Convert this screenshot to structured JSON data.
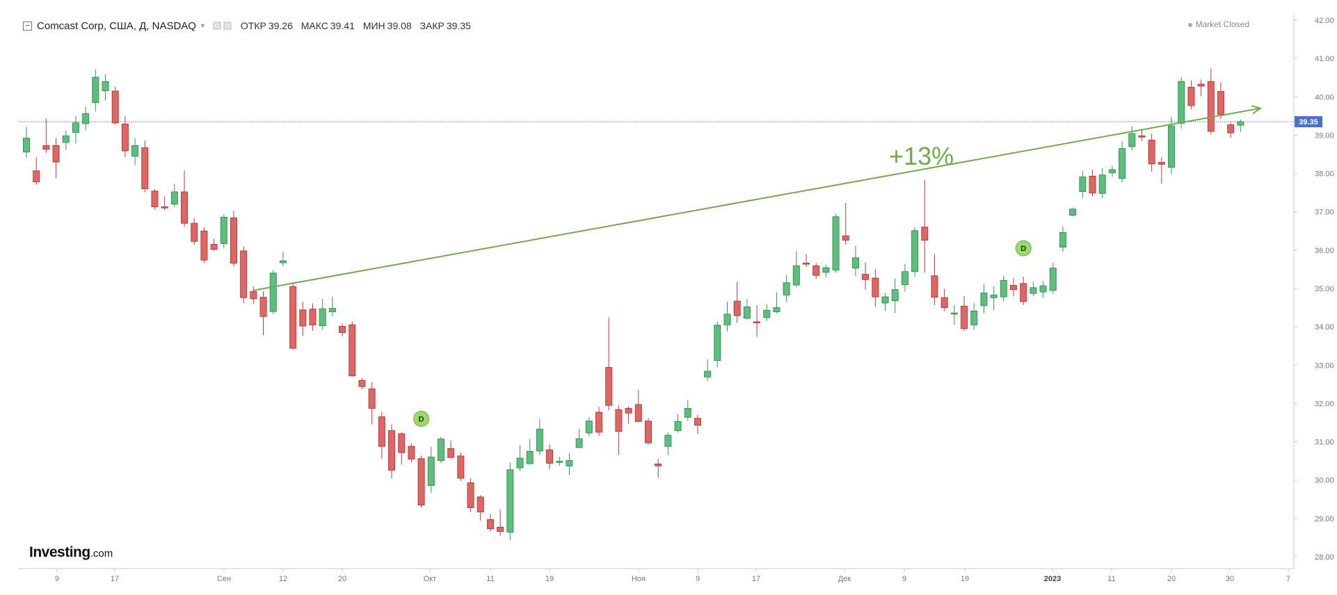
{
  "header": {
    "title": "Comcast Corp, США, Д, NASDAQ",
    "open_label": "ОТКР",
    "open_value": "39.26",
    "high_label": "МАКС",
    "high_value": "39.41",
    "low_label": "МИН",
    "low_value": "39.08",
    "close_label": "ЗАКР",
    "close_value": "39.35",
    "status": "Market Closed"
  },
  "logo": {
    "main": "Investing",
    "suffix": ".com"
  },
  "chart_data": {
    "type": "candlestick",
    "title": "Comcast Corp, США, Д, NASDAQ",
    "ylim": [
      27.8,
      42.2
    ],
    "y_ticks": [
      "28.00",
      "29.00",
      "30.00",
      "31.00",
      "32.00",
      "33.00",
      "34.00",
      "35.00",
      "36.00",
      "37.00",
      "38.00",
      "39.00",
      "40.00",
      "41.00",
      "42.00"
    ],
    "x_ticks": [
      "9",
      "17",
      "Сен",
      "12",
      "20",
      "Окт",
      "11",
      "19",
      "Ноя",
      "9",
      "17",
      "Дек",
      "9",
      "19",
      "2023",
      "11",
      "20",
      "30",
      "7"
    ],
    "grid": false,
    "last_price": "39.35",
    "candles": [
      [
        38.56,
        38.92,
        38.41,
        39.22
      ],
      [
        38.07,
        37.78,
        37.71,
        38.42
      ],
      [
        38.73,
        38.63,
        38.54,
        39.43
      ],
      [
        38.73,
        38.3,
        37.88,
        38.92
      ],
      [
        38.81,
        38.98,
        38.62,
        39.12
      ],
      [
        39.07,
        39.32,
        38.78,
        39.5
      ],
      [
        39.3,
        39.56,
        39.13,
        39.74
      ],
      [
        39.85,
        40.51,
        39.62,
        40.72
      ],
      [
        40.16,
        40.4,
        39.9,
        40.59
      ],
      [
        40.15,
        39.32,
        39.27,
        40.27
      ],
      [
        39.29,
        38.59,
        38.43,
        39.49
      ],
      [
        38.45,
        38.73,
        38.22,
        38.92
      ],
      [
        38.67,
        37.6,
        37.51,
        38.86
      ],
      [
        37.54,
        37.13,
        37.06,
        37.59
      ],
      [
        37.13,
        37.1,
        37.05,
        37.4
      ],
      [
        37.2,
        37.52,
        37.12,
        37.73
      ],
      [
        37.52,
        36.7,
        36.61,
        38.08
      ],
      [
        36.7,
        36.23,
        36.14,
        36.83
      ],
      [
        36.5,
        35.74,
        35.66,
        36.6
      ],
      [
        36.15,
        36.02,
        35.98,
        36.3
      ],
      [
        36.17,
        36.86,
        36.05,
        36.93
      ],
      [
        36.84,
        35.66,
        35.58,
        37.03
      ],
      [
        35.98,
        34.76,
        34.62,
        36.1
      ],
      [
        34.92,
        34.73,
        34.6,
        35.05
      ],
      [
        34.77,
        34.27,
        33.78,
        34.92
      ],
      [
        34.4,
        35.4,
        34.33,
        35.48
      ],
      [
        35.67,
        35.72,
        35.58,
        35.96
      ],
      [
        35.05,
        33.44,
        33.41,
        35.17
      ],
      [
        34.44,
        34.02,
        33.76,
        34.65
      ],
      [
        34.46,
        34.05,
        33.9,
        34.61
      ],
      [
        34.03,
        34.47,
        33.92,
        34.73
      ],
      [
        34.39,
        34.48,
        34.27,
        34.78
      ],
      [
        34.01,
        33.85,
        33.75,
        34.08
      ],
      [
        34.05,
        32.72,
        32.7,
        34.13
      ],
      [
        32.6,
        32.44,
        32.37,
        32.66
      ],
      [
        32.38,
        31.87,
        31.45,
        32.56
      ],
      [
        31.65,
        30.88,
        30.55,
        31.78
      ],
      [
        31.29,
        30.26,
        30.04,
        31.45
      ],
      [
        31.21,
        30.72,
        30.4,
        31.25
      ],
      [
        30.88,
        30.55,
        30.46,
        30.96
      ],
      [
        30.56,
        29.35,
        29.28,
        30.64
      ],
      [
        29.86,
        30.6,
        29.66,
        30.87
      ],
      [
        30.51,
        31.07,
        30.44,
        31.13
      ],
      [
        30.82,
        30.59,
        30.56,
        31.03
      ],
      [
        30.63,
        30.05,
        29.98,
        30.72
      ],
      [
        29.93,
        29.28,
        29.17,
        30.05
      ],
      [
        29.56,
        29.17,
        28.94,
        29.61
      ],
      [
        28.97,
        28.73,
        28.66,
        29.12
      ],
      [
        28.77,
        28.66,
        28.55,
        29.24
      ],
      [
        28.64,
        30.27,
        28.43,
        30.46
      ],
      [
        30.32,
        30.57,
        30.24,
        30.92
      ],
      [
        30.43,
        30.75,
        30.4,
        31.07
      ],
      [
        30.76,
        31.33,
        30.65,
        31.59
      ],
      [
        30.79,
        30.44,
        30.29,
        30.93
      ],
      [
        30.46,
        30.49,
        30.37,
        30.61
      ],
      [
        30.37,
        30.51,
        30.13,
        30.7
      ],
      [
        30.85,
        31.08,
        30.83,
        31.34
      ],
      [
        31.23,
        31.54,
        31.14,
        31.64
      ],
      [
        31.77,
        31.25,
        31.15,
        31.91
      ],
      [
        32.94,
        31.95,
        31.82,
        34.25
      ],
      [
        31.84,
        31.27,
        30.66,
        31.95
      ],
      [
        31.87,
        31.75,
        31.47,
        31.92
      ],
      [
        31.97,
        31.53,
        31.51,
        32.35
      ],
      [
        31.54,
        30.97,
        30.93,
        31.61
      ],
      [
        30.42,
        30.37,
        30.06,
        30.55
      ],
      [
        30.88,
        31.17,
        30.65,
        31.24
      ],
      [
        31.29,
        31.53,
        31.24,
        31.72
      ],
      [
        31.64,
        31.87,
        31.55,
        32.09
      ],
      [
        31.61,
        31.43,
        31.21,
        31.7
      ],
      [
        32.69,
        32.84,
        32.58,
        33.15
      ],
      [
        33.12,
        34.04,
        32.94,
        34.14
      ],
      [
        34.05,
        34.33,
        33.88,
        34.65
      ],
      [
        34.67,
        34.29,
        34.1,
        35.17
      ],
      [
        34.22,
        34.52,
        34.19,
        34.72
      ],
      [
        34.13,
        34.12,
        33.74,
        34.56
      ],
      [
        34.24,
        34.43,
        34.15,
        34.58
      ],
      [
        34.39,
        34.5,
        34.35,
        34.9
      ],
      [
        34.83,
        35.15,
        34.64,
        35.35
      ],
      [
        35.09,
        35.59,
        35.04,
        35.97
      ],
      [
        35.66,
        35.64,
        35.56,
        35.9
      ],
      [
        35.59,
        35.34,
        35.25,
        35.66
      ],
      [
        35.42,
        35.54,
        35.3,
        35.62
      ],
      [
        35.48,
        36.87,
        35.41,
        36.95
      ],
      [
        36.37,
        36.26,
        36.14,
        37.23
      ],
      [
        35.53,
        35.8,
        35.32,
        36.11
      ],
      [
        35.37,
        35.23,
        34.97,
        35.68
      ],
      [
        35.27,
        34.78,
        34.53,
        35.5
      ],
      [
        34.62,
        34.78,
        34.41,
        34.89
      ],
      [
        34.68,
        34.97,
        34.36,
        35.26
      ],
      [
        35.1,
        35.44,
        34.92,
        35.64
      ],
      [
        35.44,
        36.51,
        35.31,
        36.6
      ],
      [
        36.6,
        36.26,
        35.41,
        37.83
      ],
      [
        35.33,
        34.77,
        34.57,
        35.9
      ],
      [
        34.76,
        34.5,
        34.41,
        34.99
      ],
      [
        34.33,
        34.36,
        34.05,
        34.56
      ],
      [
        34.54,
        33.95,
        33.89,
        34.8
      ],
      [
        34.05,
        34.41,
        33.92,
        34.62
      ],
      [
        34.55,
        34.88,
        34.35,
        35.11
      ],
      [
        34.76,
        34.83,
        34.44,
        35.05
      ],
      [
        34.78,
        35.21,
        34.67,
        35.33
      ],
      [
        35.08,
        34.97,
        34.79,
        35.27
      ],
      [
        35.13,
        34.66,
        34.57,
        35.31
      ],
      [
        34.87,
        35.02,
        34.8,
        35.17
      ],
      [
        34.91,
        35.07,
        34.76,
        35.19
      ],
      [
        34.95,
        35.53,
        34.87,
        35.67
      ],
      [
        36.08,
        36.46,
        35.96,
        36.62
      ],
      [
        36.91,
        37.07,
        36.88,
        37.11
      ],
      [
        37.53,
        37.91,
        37.36,
        38.07
      ],
      [
        37.93,
        37.49,
        37.4,
        38.1
      ],
      [
        37.48,
        37.96,
        37.35,
        38.14
      ],
      [
        38.02,
        38.1,
        37.91,
        38.2
      ],
      [
        37.87,
        38.65,
        37.77,
        38.84
      ],
      [
        38.7,
        39.04,
        38.6,
        39.23
      ],
      [
        38.98,
        38.95,
        38.84,
        39.14
      ],
      [
        38.87,
        38.25,
        38.05,
        39.04
      ],
      [
        38.29,
        38.24,
        37.74,
        38.42
      ],
      [
        38.16,
        39.24,
        37.98,
        39.48
      ],
      [
        39.31,
        40.4,
        39.17,
        40.52
      ],
      [
        40.25,
        39.77,
        39.67,
        40.43
      ],
      [
        40.33,
        40.28,
        40.01,
        40.45
      ],
      [
        40.4,
        39.1,
        39.02,
        40.74
      ],
      [
        40.14,
        39.54,
        39.42,
        40.38
      ],
      [
        39.27,
        39.06,
        38.93,
        39.33
      ],
      [
        39.26,
        39.35,
        39.08,
        39.41
      ]
    ],
    "markers": [
      {
        "label": "D",
        "candle_index": 40,
        "price": 31.6
      },
      {
        "label": "D",
        "candle_index": 101,
        "price": 36.05
      }
    ],
    "annotations": [
      {
        "text": "+13%",
        "type": "trend-arrow",
        "from": {
          "candle_index": 23,
          "price": 34.95
        },
        "to": {
          "candle_index": 125,
          "price": 39.7
        }
      }
    ],
    "colors": {
      "up": "#5dbf7e",
      "down": "#e06666",
      "up_border": "#3a8f58",
      "down_border": "#b03d3d",
      "annotation": "#72a850",
      "dot_line": "#4c6fc7",
      "price_tag": "#4c6fc7",
      "marker": "#9bd96b"
    }
  }
}
